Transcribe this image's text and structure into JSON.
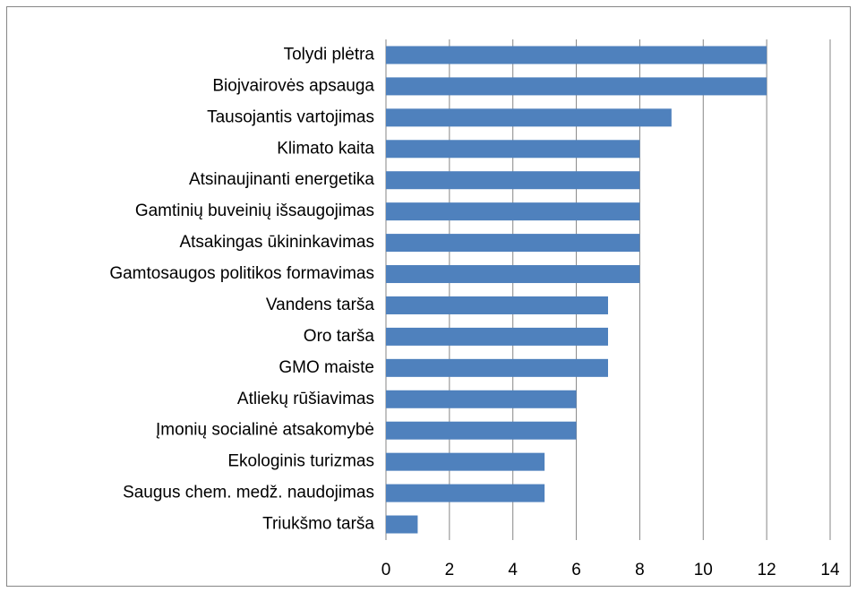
{
  "chart_data": {
    "type": "hbar",
    "categories": [
      "Tolydi plėtra",
      "Biojvairovės apsauga",
      "Tausojantis vartojimas",
      "Klimato kaita",
      "Atsinaujinanti energetika",
      "Gamtinių buveinių išsaugojimas",
      "Atsakingas ūkininkavimas",
      "Gamtosaugos politikos formavimas",
      "Vandens tarša",
      "Oro tarša",
      "GMO maiste",
      "Atliekų rūšiavimas",
      "Įmonių socialinė atsakomybė",
      "Ekologinis turizmas",
      "Saugus chem. medž. naudojimas",
      "Triukšmo tarša"
    ],
    "values": [
      12,
      12,
      9,
      8,
      8,
      8,
      8,
      8,
      7,
      7,
      7,
      6,
      6,
      5,
      5,
      1
    ],
    "color": "#4f81bd",
    "xlim": [
      0,
      14
    ],
    "xticks": [
      0,
      2,
      4,
      6,
      8,
      10,
      12,
      14
    ],
    "grid": true
  }
}
